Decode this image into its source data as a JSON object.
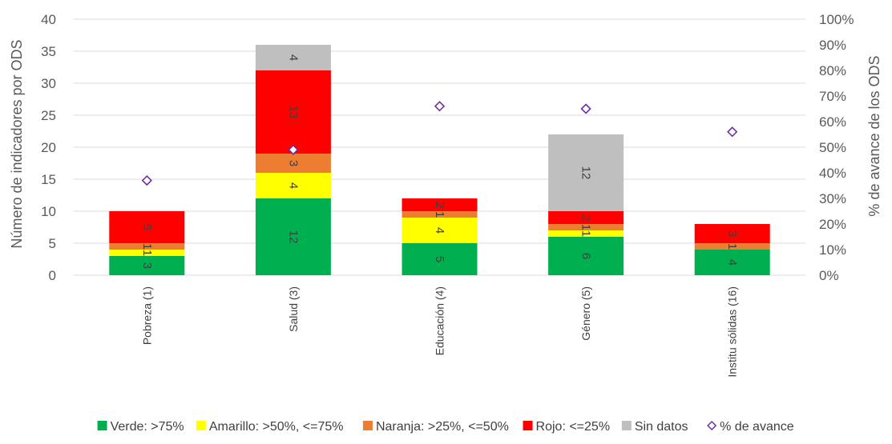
{
  "chart_data": {
    "type": "bar",
    "stacked": true,
    "categories": [
      "Pobreza (1)",
      "Salud (3)",
      "Educación (4)",
      "Género (5)",
      "Institu sólidas (16)"
    ],
    "series": [
      {
        "name": "Verde: >75%",
        "color": "#00b050",
        "values": [
          3,
          12,
          5,
          6,
          4
        ]
      },
      {
        "name": "Amarillo: >50%, <=75%",
        "color": "#ffff00",
        "values": [
          1,
          4,
          4,
          1,
          0
        ]
      },
      {
        "name": "Naranja: >25%, <=50%",
        "color": "#ed7d31",
        "values": [
          1,
          3,
          1,
          1,
          1
        ]
      },
      {
        "name": "Rojo: <=25%",
        "color": "#ff0000",
        "values": [
          5,
          13,
          2,
          2,
          3
        ]
      },
      {
        "name": "Sin datos",
        "color": "#bfbfbf",
        "values": [
          0,
          4,
          0,
          12,
          0
        ]
      }
    ],
    "line_series": {
      "name": "% de avance",
      "marker": "diamond-open",
      "color": "#7030a0",
      "axis": "right",
      "values": [
        37,
        49,
        66,
        65,
        56
      ]
    },
    "data_labels": [
      [
        "3",
        "1",
        "1",
        "5",
        ""
      ],
      [
        "12",
        "4",
        "3",
        "13",
        "4"
      ],
      [
        "5",
        "4",
        "1",
        "2",
        ""
      ],
      [
        "6",
        "1",
        "1",
        "2",
        "12"
      ],
      [
        "4",
        "",
        "1",
        "3",
        ""
      ]
    ],
    "ylabel": "Número de indicadores por ODS",
    "y2label": "% de avance de los ODS",
    "ylim": [
      0,
      40
    ],
    "yticks": [
      0,
      5,
      10,
      15,
      20,
      25,
      30,
      35,
      40
    ],
    "y2lim": [
      0,
      100
    ],
    "y2ticks": [
      "0%",
      "10%",
      "20%",
      "30%",
      "40%",
      "50%",
      "60%",
      "70%",
      "80%",
      "90%",
      "100%"
    ],
    "grid": true,
    "legend_position": "bottom"
  }
}
